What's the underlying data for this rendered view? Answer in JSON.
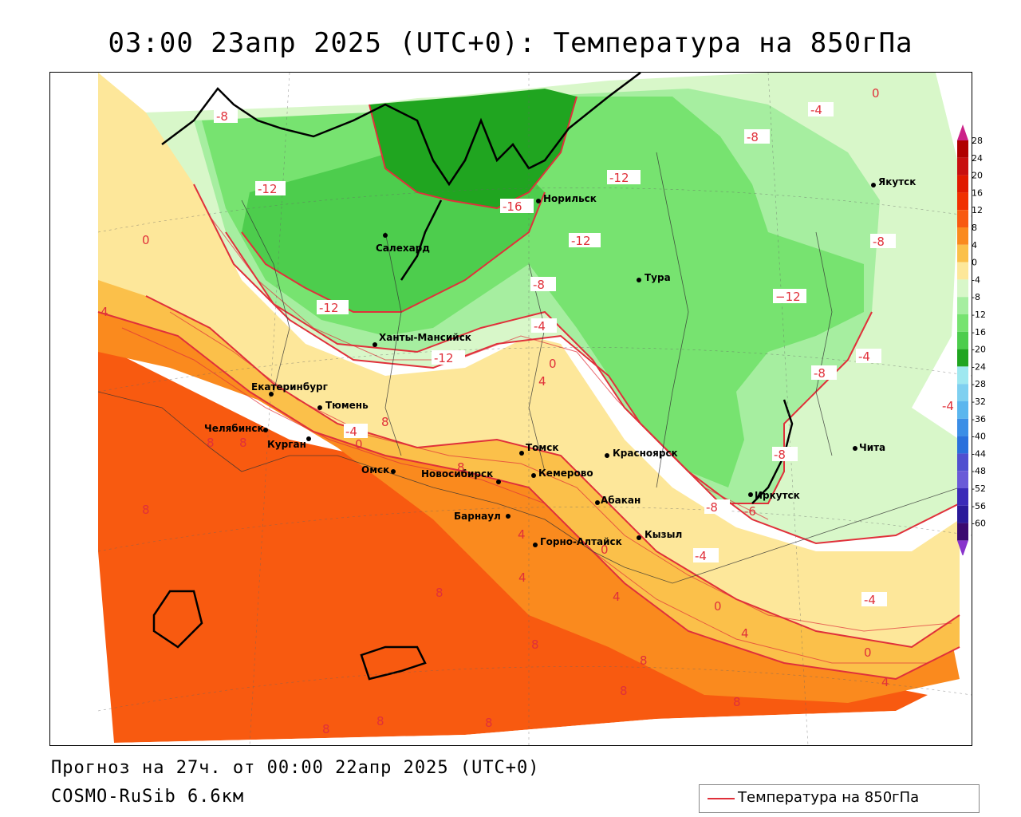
{
  "header": {
    "title": "03:00 23апр 2025 (UTC+0): Температура на 850гПа"
  },
  "footer": {
    "forecast": "Прогноз на 27ч. от 00:00 22апр 2025 (UTC+0)",
    "model": "COSMO-RuSib 6.6км"
  },
  "legend": {
    "line_label": "Температура на 850гПа",
    "line_color": "#e0303a"
  },
  "color_scale": {
    "labels": [
      "28",
      "24",
      "20",
      "16",
      "12",
      "8",
      "4",
      "0",
      "-4",
      "-8",
      "-12",
      "-16",
      "-20",
      "-24",
      "-28",
      "-32",
      "-36",
      "-40",
      "-44",
      "-48",
      "-52",
      "-56",
      "-60"
    ],
    "colors": [
      "#b00000",
      "#c81010",
      "#e01a00",
      "#f03000",
      "#f85a10",
      "#fa8a1e",
      "#fbc04a",
      "#fde79a",
      "#d8f7c9",
      "#a6eea0",
      "#77e370",
      "#4dcd4d",
      "#20a520",
      "#9fe8f0",
      "#7fd0f0",
      "#5bb6ee",
      "#3b8ee6",
      "#2a70dc",
      "#5050d0",
      "#6a5ad8",
      "#3a2ab8",
      "#2a1a9a",
      "#3a0a70"
    ],
    "top_arrow_color": "#cc2288",
    "bottom_arrow_color": "#8833cc"
  },
  "cities": [
    {
      "name": "Якутск"
    },
    {
      "name": "Норильск"
    },
    {
      "name": "Салехард"
    },
    {
      "name": "Тура"
    },
    {
      "name": "Ханты-Мансийск"
    },
    {
      "name": "Екатеринбург"
    },
    {
      "name": "Тюмень"
    },
    {
      "name": "Челябинск"
    },
    {
      "name": "Курган"
    },
    {
      "name": "Омск"
    },
    {
      "name": "Новосибирск"
    },
    {
      "name": "Томск"
    },
    {
      "name": "Кемерово"
    },
    {
      "name": "Красноярск"
    },
    {
      "name": "Барнаул"
    },
    {
      "name": "Абакан"
    },
    {
      "name": "Иркутск"
    },
    {
      "name": "Чита"
    },
    {
      "name": "Кызыл"
    },
    {
      "name": "Горно-Алтайск"
    }
  ],
  "isolines": {
    "l1": "-8",
    "l2": "-12",
    "l3": "0",
    "l4": "4",
    "l5": "-16",
    "l6": "-12",
    "l7": "-12",
    "l8": "-8",
    "l9": "-4",
    "l10": "0",
    "l11": "4",
    "l12": "-12",
    "l13": "-12",
    "l14": "-8",
    "l15": "-4",
    "l16": "-4",
    "l17": "-8",
    "l18": "-4",
    "l19": "8",
    "l20": "8",
    "l21": "-4",
    "l22": "0",
    "l23": "8",
    "l24": "8",
    "l25": "8",
    "l26": "4",
    "l27": "4",
    "l28": "0",
    "l29": "4",
    "l30": "-4",
    "l31": "-8",
    "l32": "-6",
    "l33": "-8",
    "l34": "4",
    "l35": "0",
    "l36": "4",
    "l37": "-4",
    "l38": "0",
    "l39": "4",
    "l40": "8",
    "l41": "8",
    "l42": "8",
    "l43": "8",
    "l44": "8",
    "l45": "8",
    "l46": "8",
    "l47": "-4",
    "l48": "0",
    "l49": "-8",
    "l50": "-4"
  }
}
